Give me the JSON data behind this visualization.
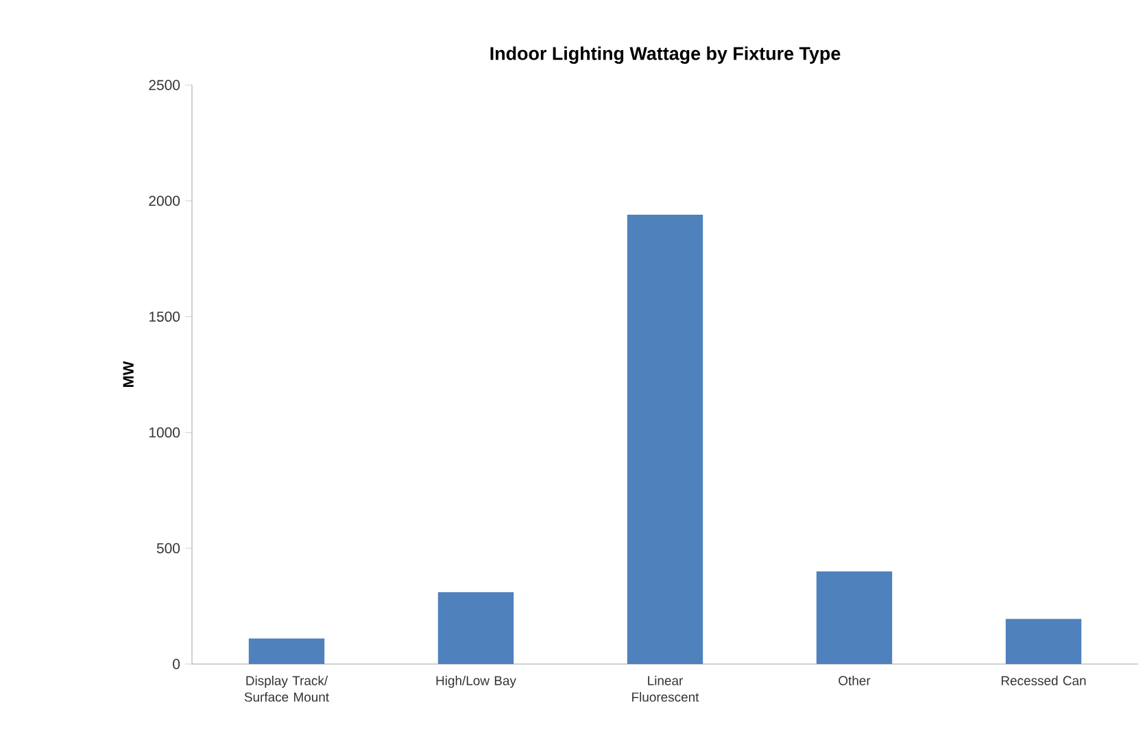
{
  "chart_data": {
    "type": "bar",
    "title": "Indoor Lighting Wattage by Fixture Type",
    "ylabel": "MW",
    "categories": [
      "Display Track/ Surface Mount",
      "High/Low Bay",
      "Linear Fluorescent",
      "Other",
      "Recessed Can"
    ],
    "values": [
      110,
      310,
      1940,
      400,
      195
    ],
    "color": "#4f81bd",
    "ylim": [
      0,
      2500
    ],
    "yticks": [
      0,
      500,
      1000,
      1500,
      2000,
      2500
    ]
  }
}
